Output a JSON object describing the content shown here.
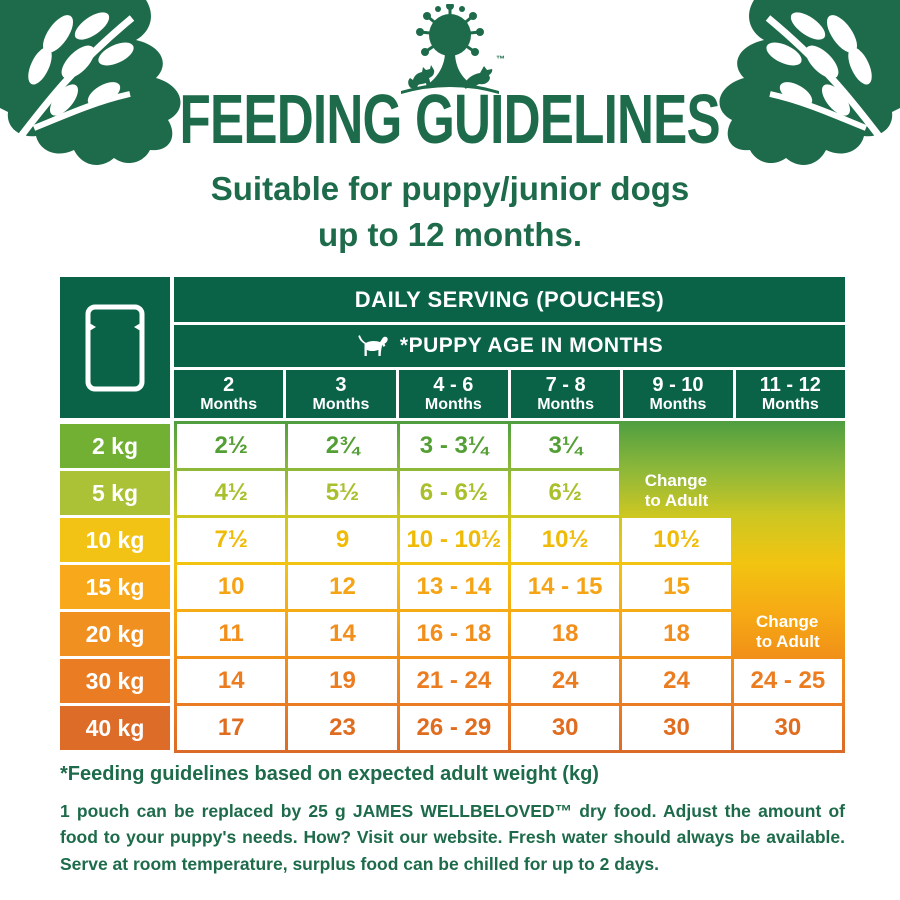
{
  "brand": {
    "logo": "james-wellbeloved-tree-logo",
    "trademark": "™",
    "dark_green": "#0a6347",
    "text_green": "#1d6b4a"
  },
  "title": "FEEDING GUIDELINES",
  "subtitle": [
    "Suitable for puppy/junior dogs",
    "up to 12 months."
  ],
  "table": {
    "serving_header": "DAILY SERVING (POUCHES)",
    "age_header": "*PUPPY AGE IN MONTHS",
    "columns": [
      [
        "2",
        "Months"
      ],
      [
        "3",
        "Months"
      ],
      [
        "4 - 6",
        "Months"
      ],
      [
        "7 - 8",
        "Months"
      ],
      [
        "9 - 10",
        "Months"
      ],
      [
        "11 - 12",
        "Months"
      ]
    ],
    "rows": [
      {
        "weight": "2 kg",
        "label_color": "#71b033",
        "value_color": "#549f35",
        "values": [
          "2½",
          "2¾",
          "3 - 3¼",
          "3¼",
          null,
          null
        ]
      },
      {
        "weight": "5 kg",
        "label_color": "#abc136",
        "value_color": "#a9bf2b",
        "values": [
          "4½",
          "5½",
          "6 - 6½",
          "6½",
          null,
          null
        ]
      },
      {
        "weight": "10 kg",
        "label_color": "#f2c214",
        "value_color": "#efbb06",
        "values": [
          "7½",
          "9",
          "10 - 10½",
          "10½",
          "10½",
          null
        ]
      },
      {
        "weight": "15 kg",
        "label_color": "#f7a81b",
        "value_color": "#f5a416",
        "values": [
          "10",
          "12",
          "13 - 14",
          "14 - 15",
          "15",
          null
        ]
      },
      {
        "weight": "20 kg",
        "label_color": "#f09020",
        "value_color": "#f28f1c",
        "values": [
          "11",
          "14",
          "16 - 18",
          "18",
          "18",
          null
        ]
      },
      {
        "weight": "30 kg",
        "label_color": "#ea7c24",
        "value_color": "#ec7c20",
        "values": [
          "14",
          "19",
          "21 - 24",
          "24",
          "24",
          "24 - 25"
        ]
      },
      {
        "weight": "40 kg",
        "label_color": "#dc6c27",
        "value_color": "#e06c1f",
        "values": [
          "17",
          "23",
          "26 - 29",
          "30",
          "30",
          "30"
        ]
      }
    ],
    "merged_cells": [
      {
        "column": 5,
        "row_start": 1,
        "row_end": 3,
        "lines": [
          "Change",
          "to Adult"
        ]
      },
      {
        "column": 6,
        "row_start": 1,
        "row_end": 6,
        "lines": [
          "Change",
          "to Adult"
        ]
      }
    ],
    "gradient": [
      "#4f9e41",
      "#8cb73a",
      "#cdc722",
      "#f2c411",
      "#f6ab14",
      "#f19018",
      "#ea7c23",
      "#da6a27"
    ]
  },
  "footnote": "*Feeding guidelines based on expected adult weight (kg)",
  "paragraph": "1 pouch can be replaced by 25 g JAMES WELLBELOVED™ dry food. Adjust the amount of food to your puppy's needs. How? Visit our website. Fresh water should always be available. Serve at room temperature, surplus food can be chilled for up to 2 days."
}
